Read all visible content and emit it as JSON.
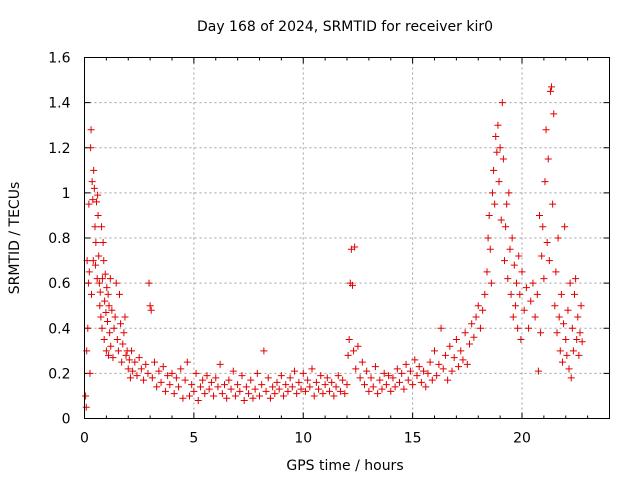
{
  "chart_data": {
    "type": "scatter",
    "title": "Day 168 of 2024, SRMTID for receiver kir0",
    "xlabel": "GPS time / hours",
    "ylabel": "SRMTID / TECUs",
    "xlim": [
      0,
      24
    ],
    "ylim": [
      0,
      1.6
    ],
    "xticks": [
      0,
      5,
      10,
      15,
      20
    ],
    "xtick_labels": [
      "0",
      "5",
      "10",
      "15",
      "20"
    ],
    "yticks": [
      0,
      0.2,
      0.4,
      0.6,
      0.8,
      1.0,
      1.2,
      1.4,
      1.6
    ],
    "ytick_labels": [
      "0",
      "0.2",
      "0.4",
      "0.6",
      "0.8",
      "1",
      "1.2",
      "1.4",
      "1.6"
    ],
    "grid": true,
    "marker": "+",
    "color": "#e00000",
    "series": [
      {
        "name": "kir0",
        "points": [
          [
            0.05,
            0.1
          ],
          [
            0.08,
            0.05
          ],
          [
            0.1,
            0.3
          ],
          [
            0.12,
            0.7
          ],
          [
            0.15,
            0.4
          ],
          [
            0.18,
            0.6
          ],
          [
            0.2,
            0.95
          ],
          [
            0.22,
            0.65
          ],
          [
            0.25,
            0.2
          ],
          [
            0.28,
            1.2
          ],
          [
            0.3,
            1.28
          ],
          [
            0.32,
            0.55
          ],
          [
            0.35,
            1.05
          ],
          [
            0.38,
            0.97
          ],
          [
            0.4,
            0.7
          ],
          [
            0.42,
            1.1
          ],
          [
            0.45,
            1.02
          ],
          [
            0.48,
            0.85
          ],
          [
            0.5,
            0.68
          ],
          [
            0.52,
            0.78
          ],
          [
            0.55,
            0.96
          ],
          [
            0.58,
            0.62
          ],
          [
            0.6,
            0.99
          ],
          [
            0.62,
            0.9
          ],
          [
            0.65,
            0.72
          ],
          [
            0.68,
            0.6
          ],
          [
            0.7,
            0.5
          ],
          [
            0.72,
            0.56
          ],
          [
            0.75,
            0.45
          ],
          [
            0.78,
            0.85
          ],
          [
            0.8,
            0.4
          ],
          [
            0.82,
            0.62
          ],
          [
            0.85,
            0.78
          ],
          [
            0.88,
            0.7
          ],
          [
            0.9,
            0.35
          ],
          [
            0.92,
            0.52
          ],
          [
            0.95,
            0.64
          ],
          [
            0.98,
            0.47
          ],
          [
            1.0,
            0.3
          ],
          [
            1.02,
            0.58
          ],
          [
            1.05,
            0.43
          ],
          [
            1.08,
            0.55
          ],
          [
            1.1,
            0.28
          ],
          [
            1.12,
            0.5
          ],
          [
            1.15,
            0.38
          ],
          [
            1.18,
            0.62
          ],
          [
            1.2,
            0.32
          ],
          [
            1.25,
            0.48
          ],
          [
            1.3,
            0.27
          ],
          [
            1.35,
            0.4
          ],
          [
            1.4,
            0.45
          ],
          [
            1.45,
            0.6
          ],
          [
            1.5,
            0.35
          ],
          [
            1.55,
            0.3
          ],
          [
            1.6,
            0.55
          ],
          [
            1.65,
            0.42
          ],
          [
            1.7,
            0.25
          ],
          [
            1.75,
            0.33
          ],
          [
            1.8,
            0.38
          ],
          [
            1.85,
            0.45
          ],
          [
            1.9,
            0.28
          ],
          [
            1.95,
            0.3
          ],
          [
            2.0,
            0.22
          ],
          [
            2.05,
            0.26
          ],
          [
            2.1,
            0.18
          ],
          [
            2.15,
            0.3
          ],
          [
            2.2,
            0.21
          ],
          [
            2.3,
            0.25
          ],
          [
            2.4,
            0.19
          ],
          [
            2.5,
            0.27
          ],
          [
            2.6,
            0.22
          ],
          [
            2.7,
            0.17
          ],
          [
            2.8,
            0.24
          ],
          [
            2.9,
            0.2
          ],
          [
            2.95,
            0.6
          ],
          [
            3.0,
            0.5
          ],
          [
            3.05,
            0.48
          ],
          [
            3.1,
            0.18
          ],
          [
            3.2,
            0.25
          ],
          [
            3.3,
            0.14
          ],
          [
            3.4,
            0.21
          ],
          [
            3.5,
            0.16
          ],
          [
            3.6,
            0.23
          ],
          [
            3.7,
            0.12
          ],
          [
            3.8,
            0.19
          ],
          [
            3.9,
            0.15
          ],
          [
            4.0,
            0.2
          ],
          [
            4.1,
            0.11
          ],
          [
            4.2,
            0.18
          ],
          [
            4.3,
            0.14
          ],
          [
            4.4,
            0.22
          ],
          [
            4.5,
            0.09
          ],
          [
            4.6,
            0.17
          ],
          [
            4.7,
            0.25
          ],
          [
            4.8,
            0.1
          ],
          [
            4.9,
            0.15
          ],
          [
            5.0,
            0.12
          ],
          [
            5.1,
            0.2
          ],
          [
            5.2,
            0.08
          ],
          [
            5.3,
            0.14
          ],
          [
            5.4,
            0.17
          ],
          [
            5.5,
            0.11
          ],
          [
            5.6,
            0.19
          ],
          [
            5.7,
            0.13
          ],
          [
            5.8,
            0.16
          ],
          [
            5.9,
            0.1
          ],
          [
            6.0,
            0.18
          ],
          [
            6.1,
            0.14
          ],
          [
            6.2,
            0.24
          ],
          [
            6.3,
            0.11
          ],
          [
            6.4,
            0.15
          ],
          [
            6.5,
            0.09
          ],
          [
            6.6,
            0.17
          ],
          [
            6.7,
            0.13
          ],
          [
            6.8,
            0.21
          ],
          [
            6.9,
            0.1
          ],
          [
            7.0,
            0.15
          ],
          [
            7.1,
            0.12
          ],
          [
            7.2,
            0.19
          ],
          [
            7.3,
            0.08
          ],
          [
            7.4,
            0.14
          ],
          [
            7.5,
            0.11
          ],
          [
            7.6,
            0.17
          ],
          [
            7.7,
            0.09
          ],
          [
            7.8,
            0.13
          ],
          [
            7.9,
            0.2
          ],
          [
            8.0,
            0.1
          ],
          [
            8.1,
            0.15
          ],
          [
            8.2,
            0.3
          ],
          [
            8.3,
            0.12
          ],
          [
            8.4,
            0.18
          ],
          [
            8.5,
            0.09
          ],
          [
            8.6,
            0.14
          ],
          [
            8.7,
            0.11
          ],
          [
            8.8,
            0.16
          ],
          [
            8.9,
            0.13
          ],
          [
            9.0,
            0.19
          ],
          [
            9.1,
            0.1
          ],
          [
            9.2,
            0.15
          ],
          [
            9.3,
            0.12
          ],
          [
            9.4,
            0.18
          ],
          [
            9.5,
            0.14
          ],
          [
            9.6,
            0.21
          ],
          [
            9.7,
            0.11
          ],
          [
            9.8,
            0.16
          ],
          [
            9.9,
            0.13
          ],
          [
            10.0,
            0.2
          ],
          [
            10.1,
            0.12
          ],
          [
            10.2,
            0.17
          ],
          [
            10.3,
            0.14
          ],
          [
            10.4,
            0.22
          ],
          [
            10.5,
            0.1
          ],
          [
            10.6,
            0.16
          ],
          [
            10.7,
            0.13
          ],
          [
            10.8,
            0.19
          ],
          [
            10.9,
            0.11
          ],
          [
            11.0,
            0.15
          ],
          [
            11.1,
            0.18
          ],
          [
            11.2,
            0.12
          ],
          [
            11.3,
            0.16
          ],
          [
            11.4,
            0.1
          ],
          [
            11.5,
            0.14
          ],
          [
            11.6,
            0.19
          ],
          [
            11.7,
            0.12
          ],
          [
            11.8,
            0.17
          ],
          [
            11.9,
            0.11
          ],
          [
            12.0,
            0.15
          ],
          [
            12.05,
            0.28
          ],
          [
            12.1,
            0.35
          ],
          [
            12.15,
            0.6
          ],
          [
            12.2,
            0.75
          ],
          [
            12.25,
            0.59
          ],
          [
            12.3,
            0.3
          ],
          [
            12.35,
            0.76
          ],
          [
            12.4,
            0.22
          ],
          [
            12.5,
            0.32
          ],
          [
            12.6,
            0.18
          ],
          [
            12.7,
            0.25
          ],
          [
            12.8,
            0.15
          ],
          [
            12.9,
            0.21
          ],
          [
            13.0,
            0.12
          ],
          [
            13.1,
            0.18
          ],
          [
            13.2,
            0.14
          ],
          [
            13.3,
            0.23
          ],
          [
            13.4,
            0.11
          ],
          [
            13.5,
            0.17
          ],
          [
            13.6,
            0.13
          ],
          [
            13.7,
            0.2
          ],
          [
            13.8,
            0.15
          ],
          [
            13.9,
            0.19
          ],
          [
            14.0,
            0.12
          ],
          [
            14.1,
            0.18
          ],
          [
            14.2,
            0.14
          ],
          [
            14.3,
            0.22
          ],
          [
            14.4,
            0.16
          ],
          [
            14.5,
            0.2
          ],
          [
            14.6,
            0.13
          ],
          [
            14.7,
            0.24
          ],
          [
            14.8,
            0.17
          ],
          [
            14.9,
            0.21
          ],
          [
            15.0,
            0.15
          ],
          [
            15.1,
            0.26
          ],
          [
            15.2,
            0.19
          ],
          [
            15.3,
            0.23
          ],
          [
            15.4,
            0.16
          ],
          [
            15.5,
            0.21
          ],
          [
            15.6,
            0.14
          ],
          [
            15.7,
            0.2
          ],
          [
            15.8,
            0.25
          ],
          [
            15.9,
            0.17
          ],
          [
            16.0,
            0.3
          ],
          [
            16.1,
            0.19
          ],
          [
            16.2,
            0.24
          ],
          [
            16.3,
            0.4
          ],
          [
            16.4,
            0.22
          ],
          [
            16.5,
            0.28
          ],
          [
            16.6,
            0.17
          ],
          [
            16.7,
            0.32
          ],
          [
            16.8,
            0.21
          ],
          [
            16.9,
            0.27
          ],
          [
            17.0,
            0.35
          ],
          [
            17.1,
            0.23
          ],
          [
            17.2,
            0.3
          ],
          [
            17.3,
            0.26
          ],
          [
            17.4,
            0.38
          ],
          [
            17.5,
            0.24
          ],
          [
            17.6,
            0.33
          ],
          [
            17.7,
            0.42
          ],
          [
            17.8,
            0.36
          ],
          [
            17.9,
            0.45
          ],
          [
            18.0,
            0.5
          ],
          [
            18.1,
            0.4
          ],
          [
            18.2,
            0.48
          ],
          [
            18.3,
            0.55
          ],
          [
            18.4,
            0.65
          ],
          [
            18.45,
            0.8
          ],
          [
            18.5,
            0.9
          ],
          [
            18.55,
            0.75
          ],
          [
            18.6,
            0.6
          ],
          [
            18.65,
            1.0
          ],
          [
            18.7,
            1.1
          ],
          [
            18.75,
            0.95
          ],
          [
            18.8,
            1.25
          ],
          [
            18.85,
            1.18
          ],
          [
            18.9,
            1.3
          ],
          [
            18.95,
            1.05
          ],
          [
            19.0,
            1.2
          ],
          [
            19.05,
            0.88
          ],
          [
            19.1,
            1.4
          ],
          [
            19.15,
            1.15
          ],
          [
            19.2,
            0.7
          ],
          [
            19.25,
            0.85
          ],
          [
            19.3,
            0.95
          ],
          [
            19.35,
            0.62
          ],
          [
            19.4,
            1.0
          ],
          [
            19.45,
            0.75
          ],
          [
            19.5,
            0.55
          ],
          [
            19.55,
            0.8
          ],
          [
            19.6,
            0.45
          ],
          [
            19.65,
            0.68
          ],
          [
            19.7,
            0.5
          ],
          [
            19.75,
            0.6
          ],
          [
            19.8,
            0.4
          ],
          [
            19.85,
            0.72
          ],
          [
            19.9,
            0.55
          ],
          [
            19.95,
            0.35
          ],
          [
            20.0,
            0.65
          ],
          [
            20.1,
            0.48
          ],
          [
            20.2,
            0.58
          ],
          [
            20.3,
            0.4
          ],
          [
            20.4,
            0.52
          ],
          [
            20.5,
            0.6
          ],
          [
            20.6,
            0.45
          ],
          [
            20.7,
            0.55
          ],
          [
            20.75,
            0.21
          ],
          [
            20.8,
            0.9
          ],
          [
            20.85,
            0.38
          ],
          [
            20.9,
            0.72
          ],
          [
            20.95,
            0.85
          ],
          [
            21.0,
            0.62
          ],
          [
            21.05,
            1.05
          ],
          [
            21.1,
            1.28
          ],
          [
            21.15,
            0.78
          ],
          [
            21.2,
            1.15
          ],
          [
            21.25,
            0.7
          ],
          [
            21.3,
            1.45
          ],
          [
            21.35,
            1.47
          ],
          [
            21.4,
            0.95
          ],
          [
            21.45,
            1.35
          ],
          [
            21.5,
            0.5
          ],
          [
            21.55,
            0.65
          ],
          [
            21.6,
            0.38
          ],
          [
            21.65,
            0.8
          ],
          [
            21.7,
            0.45
          ],
          [
            21.75,
            0.3
          ],
          [
            21.8,
            0.55
          ],
          [
            21.85,
            0.25
          ],
          [
            21.9,
            0.42
          ],
          [
            21.95,
            0.85
          ],
          [
            22.0,
            0.35
          ],
          [
            22.05,
            0.28
          ],
          [
            22.1,
            0.48
          ],
          [
            22.15,
            0.22
          ],
          [
            22.2,
            0.6
          ],
          [
            22.25,
            0.18
          ],
          [
            22.3,
            0.4
          ],
          [
            22.35,
            0.3
          ],
          [
            22.4,
            0.55
          ],
          [
            22.45,
            0.62
          ],
          [
            22.5,
            0.35
          ],
          [
            22.55,
            0.45
          ],
          [
            22.6,
            0.28
          ],
          [
            22.65,
            0.38
          ],
          [
            22.7,
            0.5
          ],
          [
            22.75,
            0.34
          ]
        ]
      }
    ]
  }
}
